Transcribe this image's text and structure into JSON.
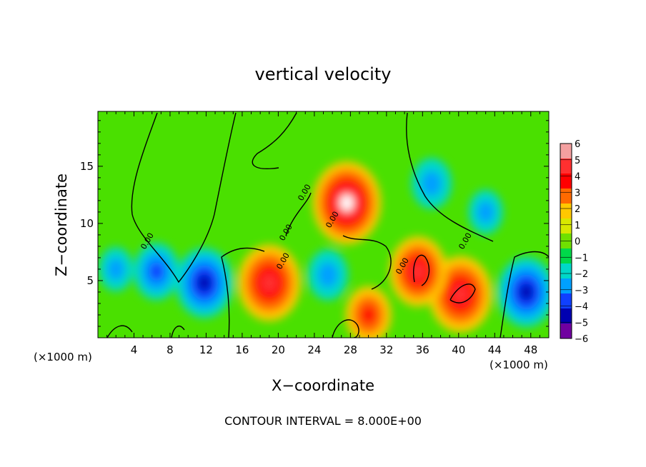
{
  "chart_data": {
    "type": "heatmap",
    "title": "vertical velocity",
    "xlabel": "X−coordinate",
    "ylabel": "Z−coordinate",
    "x_unit_left": "(×1000 m)",
    "x_unit_right": "(×1000 m)",
    "footer": "CONTOUR INTERVAL = 8.000E+00",
    "xlim": [
      0,
      50
    ],
    "ylim": [
      0,
      19.8
    ],
    "x_ticks": [
      4,
      8,
      12,
      16,
      20,
      24,
      28,
      32,
      36,
      40,
      44,
      48
    ],
    "x_tick_labels": [
      "4",
      "8",
      "12",
      "16",
      "20",
      "24",
      "28",
      "32",
      "36",
      "40",
      "44",
      "48"
    ],
    "y_ticks": [
      5,
      10,
      15
    ],
    "y_tick_labels": [
      "5",
      "10",
      "15"
    ],
    "colorbar": {
      "min": -6,
      "max": 6,
      "labels": [
        "6",
        "5",
        "4",
        "3",
        "2",
        "1",
        "0",
        "−1",
        "−2",
        "−3",
        "−4",
        "−5",
        "−6"
      ],
      "colors": [
        "#f4a0a0",
        "#ff3030",
        "#ff0000",
        "#ff6a00",
        "#ffc800",
        "#d8e800",
        "#70e000",
        "#00d84a",
        "#00d8c8",
        "#00a0ff",
        "#1040ff",
        "#0000b0",
        "#7000a0"
      ]
    },
    "contour_labels": [
      "0.00",
      "0.00",
      "0.00",
      "0.00",
      "0.00",
      "0.00",
      "0.00"
    ],
    "features": [
      {
        "x": 27.6,
        "z": 11.8,
        "w": 8
      },
      {
        "x": 19.0,
        "z": 4.8,
        "w": 7
      },
      {
        "x": 40.2,
        "z": 3.8,
        "w": 7
      },
      {
        "x": 35.5,
        "z": 5.8,
        "w": 6
      },
      {
        "x": 30.0,
        "z": 2.0,
        "w": 4
      },
      {
        "x": 11.8,
        "z": 4.8,
        "w": -6
      },
      {
        "x": 47.5,
        "z": 4.0,
        "w": -6
      },
      {
        "x": 6.5,
        "z": 5.8,
        "w": -4
      },
      {
        "x": 25.5,
        "z": 5.5,
        "w": -3
      },
      {
        "x": 37.0,
        "z": 13.5,
        "w": -3
      },
      {
        "x": 43.0,
        "z": 11.0,
        "w": -2
      },
      {
        "x": 2.0,
        "z": 6.0,
        "w": -2
      }
    ]
  }
}
